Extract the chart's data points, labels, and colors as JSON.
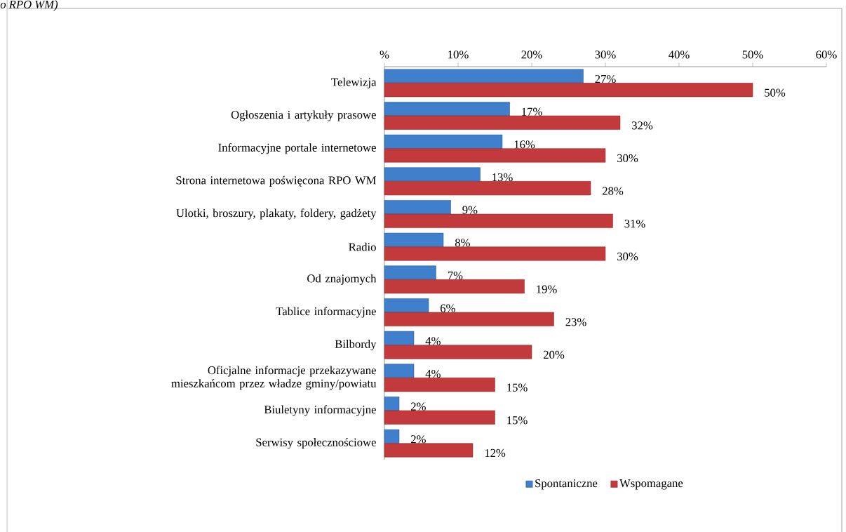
{
  "chart_data": {
    "type": "bar",
    "orientation": "horizontal",
    "annotations": [
      "o RPO WM)"
    ],
    "categories": [
      "Telewizja",
      "Ogłoszenia i artykuły prasowe",
      "Informacyjne portale internetowe",
      "Strona internetowa poświęcona RPO WM",
      "Ulotki, broszury, plakaty, foldery, gadżety",
      "Radio",
      "Od znajomych",
      "Tablice informacyjne",
      "Bilbordy",
      "Oficjalne informacje przekazywane mieszkańcom przez władze gminy/powiatu",
      "Biuletyny informacyjne",
      "Serwisy społecznościowe"
    ],
    "series": [
      {
        "name": "Spontaniczne",
        "color": "#3f7fcb",
        "values": [
          27,
          17,
          16,
          13,
          9,
          8,
          7,
          6,
          4,
          4,
          2,
          2
        ],
        "value_labels": [
          "27%",
          "17%",
          "16%",
          "13%",
          "9%",
          "8%",
          "7%",
          "6%",
          "4%",
          "4%",
          "2%",
          "2%"
        ]
      },
      {
        "name": "Wspomagane",
        "color": "#c33a3c",
        "values": [
          50,
          32,
          30,
          28,
          31,
          30,
          19,
          23,
          20,
          15,
          15,
          12
        ],
        "value_labels": [
          "50%",
          "32%",
          "30%",
          "28%",
          "31%",
          "30%",
          "19%",
          "23%",
          "20%",
          "15%",
          "15%",
          "12%"
        ]
      }
    ],
    "xlim": [
      0,
      60
    ],
    "xticks": [
      {
        "value": 0,
        "label": "%"
      },
      {
        "value": 10,
        "label": "10%"
      },
      {
        "value": 20,
        "label": "20%"
      },
      {
        "value": 30,
        "label": "30%"
      },
      {
        "value": 40,
        "label": "40%"
      },
      {
        "value": 50,
        "label": "50%"
      },
      {
        "value": 60,
        "label": "60%"
      }
    ],
    "legend": "bottom",
    "grid": false
  }
}
